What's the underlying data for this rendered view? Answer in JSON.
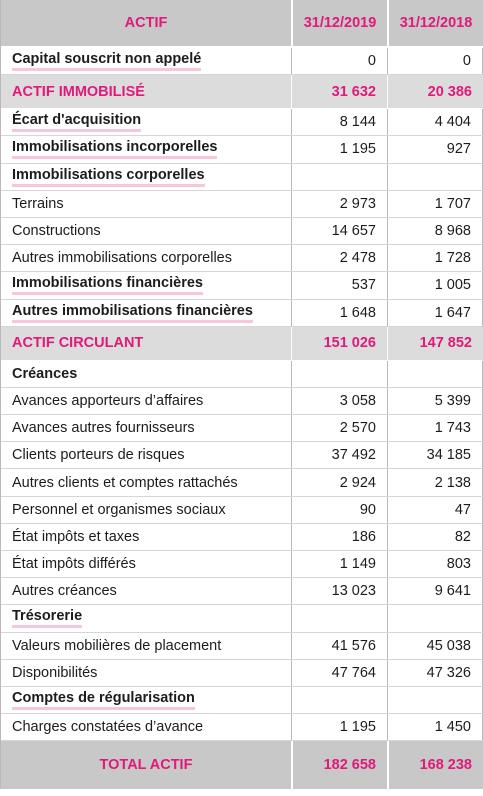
{
  "header": {
    "col_label": "ACTIF",
    "col_2019": "31/12/2019",
    "col_2018": "31/12/2018"
  },
  "rows": [
    {
      "label": "Capital souscrit non appelé",
      "v2019": "0",
      "v2018": "0",
      "style": "bold-ul"
    },
    {
      "label": "ACTIF IMMOBILISÉ",
      "v2019": "31 632",
      "v2018": "20 386",
      "style": "section"
    },
    {
      "label": "Écart d'acquisition",
      "v2019": "8 144",
      "v2018": "4 404",
      "style": "bold-ul"
    },
    {
      "label": "Immobilisations incorporelles",
      "v2019": "1 195",
      "v2018": "927",
      "style": "bold-ul"
    },
    {
      "label": "Immobilisations corporelles",
      "v2019": "",
      "v2018": "",
      "style": "bold-ul"
    },
    {
      "label": "Terrains",
      "v2019": "2 973",
      "v2018": "1 707",
      "style": "normal"
    },
    {
      "label": "Constructions",
      "v2019": "14 657",
      "v2018": "8 968",
      "style": "normal"
    },
    {
      "label": "Autres immobilisations corporelles",
      "v2019": "2 478",
      "v2018": "1 728",
      "style": "normal"
    },
    {
      "label": "Immobilisations financières",
      "v2019": "537",
      "v2018": "1 005",
      "style": "bold-ul"
    },
    {
      "label": "Autres immobilisations financières",
      "v2019": "1 648",
      "v2018": "1 647",
      "style": "bold-ul"
    },
    {
      "label": "ACTIF CIRCULANT",
      "v2019": "151 026",
      "v2018": "147 852",
      "style": "section"
    },
    {
      "label": "Créances",
      "v2019": "",
      "v2018": "",
      "style": "bold"
    },
    {
      "label": "Avances apporteurs d’affaires",
      "v2019": "3 058",
      "v2018": "5 399",
      "style": "normal"
    },
    {
      "label": "Avances autres fournisseurs",
      "v2019": "2 570",
      "v2018": "1 743",
      "style": "normal"
    },
    {
      "label": "Clients porteurs de risques",
      "v2019": "37 492",
      "v2018": "34 185",
      "style": "normal"
    },
    {
      "label": "Autres clients et comptes rattachés",
      "v2019": "2 924",
      "v2018": "2 138",
      "style": "normal"
    },
    {
      "label": "Personnel et organismes sociaux",
      "v2019": "90",
      "v2018": "47",
      "style": "normal"
    },
    {
      "label": "État impôts et taxes",
      "v2019": "186",
      "v2018": "82",
      "style": "normal"
    },
    {
      "label": "État impôts différés",
      "v2019": "1 149",
      "v2018": "803",
      "style": "normal"
    },
    {
      "label": "Autres créances",
      "v2019": "13 023",
      "v2018": "9 641",
      "style": "normal"
    },
    {
      "label": "Trésorerie",
      "v2019": "",
      "v2018": "",
      "style": "bold-ul"
    },
    {
      "label": "Valeurs mobilières de placement",
      "v2019": "41 576",
      "v2018": "45 038",
      "style": "normal"
    },
    {
      "label": "Disponibilités",
      "v2019": "47 764",
      "v2018": "47 326",
      "style": "normal"
    },
    {
      "label": "Comptes de régularisation",
      "v2019": "",
      "v2018": "",
      "style": "bold-ul"
    },
    {
      "label": "Charges constatées d’avance",
      "v2019": "1 195",
      "v2018": "1 450",
      "style": "normal"
    }
  ],
  "total": {
    "label": "TOTAL ACTIF",
    "v2019": "182 658",
    "v2018": "168 238"
  },
  "colors": {
    "accent": "#e0197a",
    "header_bg": "#c8c8c8",
    "section_bg": "#dcdcdc",
    "underline": "#f7c6dc"
  }
}
